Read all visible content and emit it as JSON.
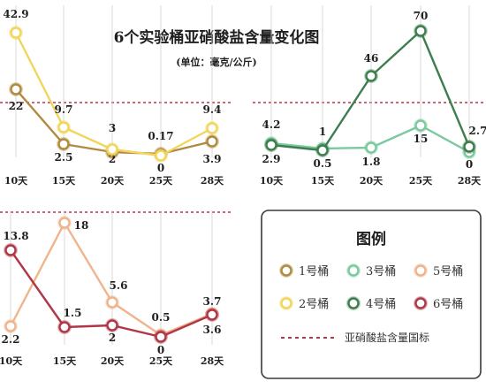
{
  "title": "6个实验桶亚硝酸盐含量变化图",
  "subtitle": "(单位：毫克/公斤)",
  "colors": {
    "threshold": "#b5374a",
    "gridline": "#cfcfcf",
    "text": "#1f1f1f"
  },
  "legend": {
    "title": "图例",
    "threshold_label": "亚硝酸盐含量国标",
    "items": [
      {
        "label": "1号桶",
        "color": "#b08a3e"
      },
      {
        "label": "3号桶",
        "color": "#7cc9a0"
      },
      {
        "label": "5号桶",
        "color": "#f0b48c"
      },
      {
        "label": "2号桶",
        "color": "#f2d55c"
      },
      {
        "label": "4号桶",
        "color": "#3e7e4e"
      },
      {
        "label": "6号桶",
        "color": "#b03748"
      }
    ]
  },
  "chart_data": [
    {
      "type": "line",
      "categories": [
        "10天",
        "15天",
        "20天",
        "25天",
        "28天"
      ],
      "series": [
        {
          "name": "1号桶",
          "color": "#b08a3e",
          "values": [
            22,
            2.5,
            2,
            0,
            3.9
          ],
          "labels": [
            "22",
            "2.5",
            "2",
            "0",
            "3.9"
          ]
        },
        {
          "name": "2号桶",
          "color": "#f2d55c",
          "values": [
            42.9,
            9.7,
            3,
            0.17,
            9.4
          ],
          "labels": [
            "42.9",
            "9.7",
            "3",
            "0.17",
            "9.4"
          ]
        }
      ]
    },
    {
      "type": "line",
      "categories": [
        "10天",
        "15天",
        "20天",
        "25天",
        "28天"
      ],
      "series": [
        {
          "name": "3号桶",
          "color": "#7cc9a0",
          "values": [
            4.2,
            1,
            1.8,
            15,
            0
          ],
          "labels": [
            "4.2",
            "1",
            "1.8",
            "15",
            "0"
          ]
        },
        {
          "name": "4号桶",
          "color": "#3e7e4e",
          "values": [
            2.9,
            0.5,
            46,
            70,
            2.7
          ],
          "labels": [
            "2.9",
            "0.5",
            "46",
            "70",
            "2.7"
          ]
        }
      ]
    },
    {
      "type": "line",
      "categories": [
        "10天",
        "15天",
        "20天",
        "25天",
        "28天"
      ],
      "series": [
        {
          "name": "5号桶",
          "color": "#f0b48c",
          "values": [
            2.2,
            18,
            5.6,
            0.5,
            3.7
          ],
          "labels": [
            "2.2",
            "18",
            "5.6",
            "0.5",
            "3.7"
          ]
        },
        {
          "name": "6号桶",
          "color": "#b03748",
          "values": [
            13.8,
            1.5,
            2,
            0,
            3.6
          ],
          "labels": [
            "13.8",
            "1.5",
            "2",
            "0",
            "3.6"
          ]
        }
      ]
    }
  ]
}
